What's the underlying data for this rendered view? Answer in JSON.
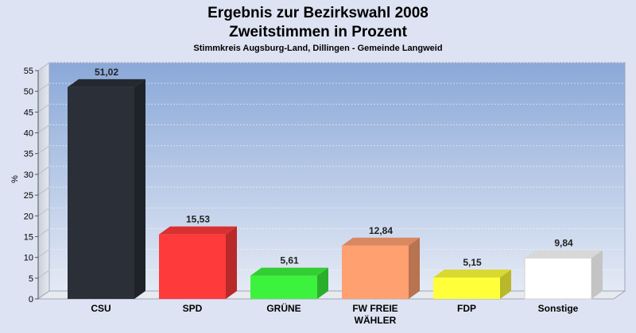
{
  "chart_data": {
    "type": "bar",
    "title": "Ergebnis zur Bezirkswahl 2008",
    "title_line2": "Zweitstimmen in Prozent",
    "subtitle": "Stimmkreis Augsburg-Land, Dillingen - Gemeinde Langweid",
    "ylabel": "%",
    "xlabel": "",
    "ylim": [
      0,
      55
    ],
    "yticks": [
      0,
      5,
      10,
      15,
      20,
      25,
      30,
      35,
      40,
      45,
      50,
      55
    ],
    "grid": true,
    "categories": [
      "CSU",
      "SPD",
      "GRÜNE",
      "FW FREIE WÄHLER",
      "FDP",
      "Sonstige"
    ],
    "category_lines": [
      [
        "CSU"
      ],
      [
        "SPD"
      ],
      [
        "GRÜNE"
      ],
      [
        "FW FREIE",
        "WÄHLER"
      ],
      [
        "FDP"
      ],
      [
        "Sonstige"
      ]
    ],
    "values": [
      51.02,
      15.53,
      5.61,
      12.84,
      5.15,
      9.84
    ],
    "value_labels": [
      "51,02",
      "15,53",
      "5,61",
      "12,84",
      "5,15",
      "9,84"
    ],
    "colors": [
      "#2b2f38",
      "#ff3a3a",
      "#3cf23c",
      "#ffa070",
      "#ffff3a",
      "#ffffff"
    ],
    "plot_background": [
      "#8aa8d8",
      "#e4eaf5"
    ]
  }
}
